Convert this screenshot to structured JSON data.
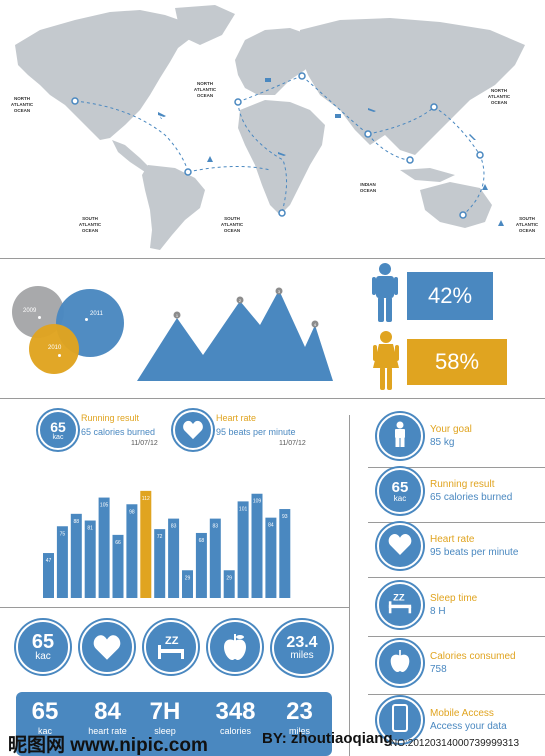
{
  "map": {
    "ocean_labels": [
      {
        "line1": "NORTH",
        "line2": "ATLANTIC",
        "line3": "OCEAN"
      },
      {
        "line1": "NORTH",
        "line2": "ATLANTIC",
        "line3": "OCEAN"
      },
      {
        "line1": "NORTH",
        "line2": "ATLANTIC",
        "line3": "OCEAN"
      },
      {
        "line1": "SOUTH",
        "line2": "ATLANTIC",
        "line3": "OCEAN"
      },
      {
        "line1": "SOUTH",
        "line2": "ATLANTIC",
        "line3": "OCEAN"
      },
      {
        "line1": "INDIAN",
        "line2": "OCEAN",
        "line3": ""
      },
      {
        "line1": "SOUTH",
        "line2": "ATLANTIC",
        "line3": "OCEAN"
      }
    ]
  },
  "venn": {
    "years": [
      "2009",
      "2011",
      "2010"
    ]
  },
  "mountain": {
    "markers": [
      "1",
      "2",
      "3",
      "4"
    ]
  },
  "gender": {
    "male_pct": "42%",
    "female_pct": "58%"
  },
  "summary": {
    "running": {
      "circle_top": "65",
      "circle_bottom": "kac",
      "title": "Running result",
      "subtitle": "65 calories burned",
      "date": "11/07/12"
    },
    "heart": {
      "title": "Heart rate",
      "subtitle": "95 beats per minute",
      "date": "11/07/12"
    }
  },
  "chart_data": {
    "type": "bar",
    "values": [
      47,
      75,
      88,
      81,
      105,
      66,
      98,
      112,
      72,
      83,
      29,
      68,
      83,
      29,
      101,
      109,
      84,
      93
    ],
    "highlight_index": 7,
    "colors": {
      "bar": "#4a88c0",
      "highlight": "#e0a420"
    }
  },
  "big_circles": [
    {
      "top": "65",
      "bottom": "kac"
    },
    {
      "icon": "heart-icon"
    },
    {
      "icon": "sleep-icon"
    },
    {
      "icon": "apple-icon"
    },
    {
      "top": "23.4",
      "bottom": "miles"
    }
  ],
  "bottom_panel": {
    "items": [
      {
        "num": "65",
        "label": "kac"
      },
      {
        "num": "84",
        "label": "heart rate"
      },
      {
        "num": "7H",
        "label": "sleep"
      },
      {
        "num": "348",
        "label": "calories"
      },
      {
        "num": "23",
        "label": "miles"
      }
    ]
  },
  "right_column": [
    {
      "icon": "person-icon",
      "title": "Your goal",
      "subtitle": "85 kg"
    },
    {
      "circle_top": "65",
      "circle_bottom": "kac",
      "title": "Running result",
      "subtitle": "65 calories burned"
    },
    {
      "icon": "heart-icon",
      "title": "Heart rate",
      "subtitle": "95 beats per minute"
    },
    {
      "icon": "sleep-icon",
      "title": "Sleep time",
      "subtitle": "8 H"
    },
    {
      "icon": "apple-icon",
      "title": "Calories consumed",
      "subtitle": "758"
    },
    {
      "icon": "phone-icon",
      "title": "Mobile Access",
      "subtitle": "Access your data"
    }
  ],
  "watermark": {
    "left": "昵图网 www.nipic.com",
    "middle": "BY: zhoutiaoqiang",
    "right": "NO:20120314000739999313"
  },
  "colors": {
    "blue": "#4a88c0",
    "orange": "#e0a420",
    "grey": "#c4c9ce"
  }
}
